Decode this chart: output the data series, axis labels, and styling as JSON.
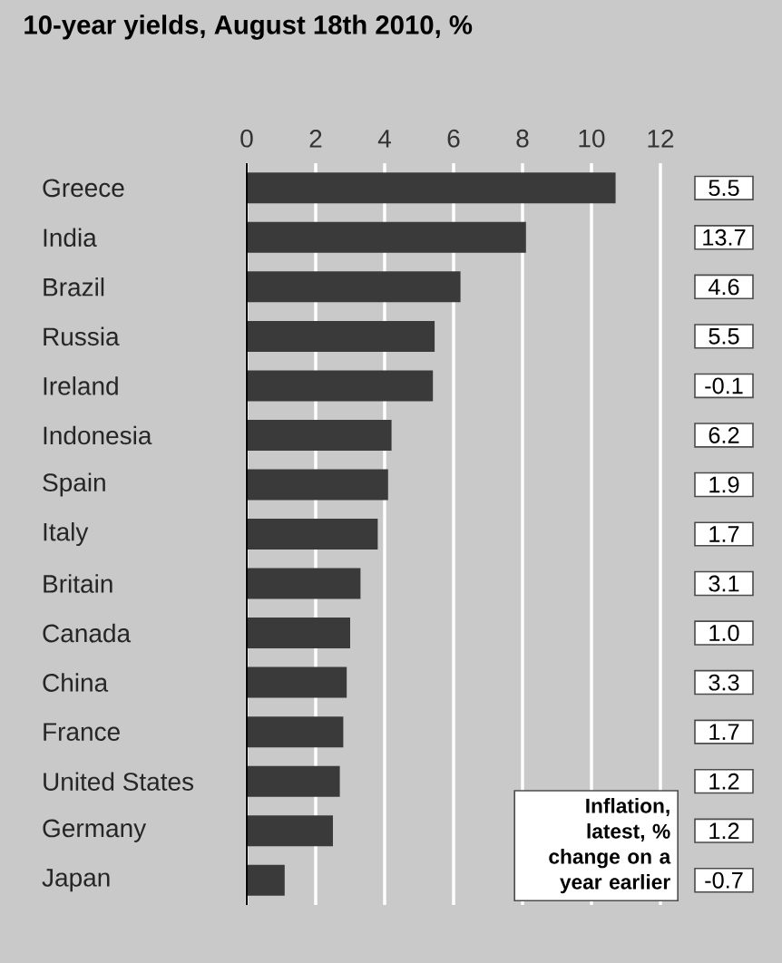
{
  "chart_data": {
    "type": "bar",
    "orientation": "horizontal",
    "title": "10-year yields, August 18th 2010, %",
    "categories": [
      "Greece",
      "India",
      "Brazil",
      "Russia",
      "Ireland",
      "Indonesia",
      "Spain",
      "Italy",
      "Britain",
      "Canada",
      "China",
      "France",
      "United States",
      "Germany",
      "Japan"
    ],
    "values": [
      10.7,
      8.1,
      6.2,
      5.45,
      5.4,
      4.2,
      4.1,
      3.8,
      3.3,
      3.0,
      2.9,
      2.8,
      2.7,
      2.5,
      1.1
    ],
    "color": "#3a3a3a",
    "xlim": [
      0,
      12
    ],
    "xticks": [
      0,
      2,
      4,
      6,
      8,
      10,
      12
    ],
    "grid": "x",
    "annotations": [
      "5.5",
      "13.7",
      "4.6",
      "5.5",
      "-0.1",
      "6.2",
      "1.9",
      "1.7",
      "3.1",
      "1.0",
      "3.3",
      "1.7",
      "1.2",
      "1.2",
      "-0.7",
      "Inflation, latest, % change on a year earlier"
    ]
  }
}
